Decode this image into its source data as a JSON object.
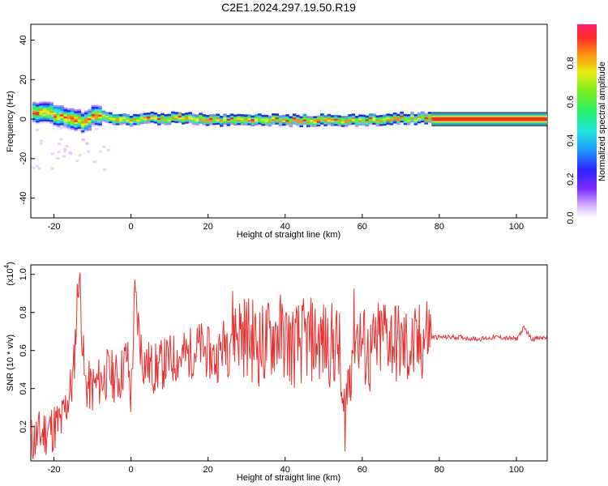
{
  "title": "C2E1.2024.297.19.50.R19",
  "chart_data": [
    {
      "type": "heatmap",
      "xlabel": "Height of straight line (km)",
      "ylabel": "Frequency (Hz)",
      "xlim": [
        -26,
        108
      ],
      "ylim": [
        -50,
        48
      ],
      "xticks": [
        -20,
        0,
        20,
        40,
        60,
        80,
        100
      ],
      "yticks": [
        -40,
        -20,
        0,
        20,
        40
      ],
      "grid": false,
      "colorbar": {
        "label": "Normalized spectral amplitude",
        "range": [
          0,
          1
        ],
        "ticks": [
          0.0,
          0.2,
          0.4,
          0.6,
          0.8
        ]
      },
      "dominant_frequency_track_hz": {
        "x_km": [
          -25,
          -20,
          -16,
          -13,
          -10,
          -5,
          0,
          5,
          10,
          15,
          20,
          30,
          40,
          50,
          60,
          70,
          77,
          78,
          90,
          100,
          108
        ],
        "freq": [
          4,
          3,
          1,
          -1,
          2,
          1,
          0,
          1,
          1,
          1,
          0,
          0,
          0,
          0,
          0,
          1,
          1,
          0,
          0,
          0,
          0
        ]
      }
    },
    {
      "type": "line",
      "xlabel": "Height of straight line (km)",
      "ylabel": "SNR (10 * v/v)",
      "yscale_label": "(x10",
      "yscale_exponent": "4",
      "xlim": [
        -26,
        108
      ],
      "ylim": [
        0.02,
        1.05
      ],
      "xticks": [
        -20,
        0,
        20,
        40,
        60,
        80,
        100
      ],
      "yticks": [
        0.2,
        0.4,
        0.6,
        0.8,
        1.0
      ],
      "grid": false,
      "series": [
        {
          "color": "#e8312f",
          "x": [
            -26,
            -22,
            -18,
            -15,
            -13.5,
            -12,
            -10,
            -6,
            -3,
            -1,
            0,
            1,
            3,
            6,
            10,
            15,
            18,
            22,
            26,
            30,
            34,
            38,
            42,
            46,
            50,
            54,
            55,
            58,
            62,
            66,
            70,
            74,
            77,
            78,
            80,
            85,
            90,
            95,
            100,
            102,
            104,
            108
          ],
          "y": [
            0.12,
            0.18,
            0.22,
            0.45,
            1.03,
            0.42,
            0.4,
            0.48,
            0.45,
            0.58,
            0.35,
            0.88,
            0.55,
            0.5,
            0.55,
            0.58,
            0.62,
            0.55,
            0.72,
            0.68,
            0.62,
            0.7,
            0.62,
            0.66,
            0.64,
            0.62,
            0.2,
            0.72,
            0.56,
            0.7,
            0.62,
            0.6,
            0.7,
            0.67,
            0.67,
            0.67,
            0.66,
            0.67,
            0.66,
            0.72,
            0.66,
            0.67
          ]
        }
      ]
    }
  ]
}
